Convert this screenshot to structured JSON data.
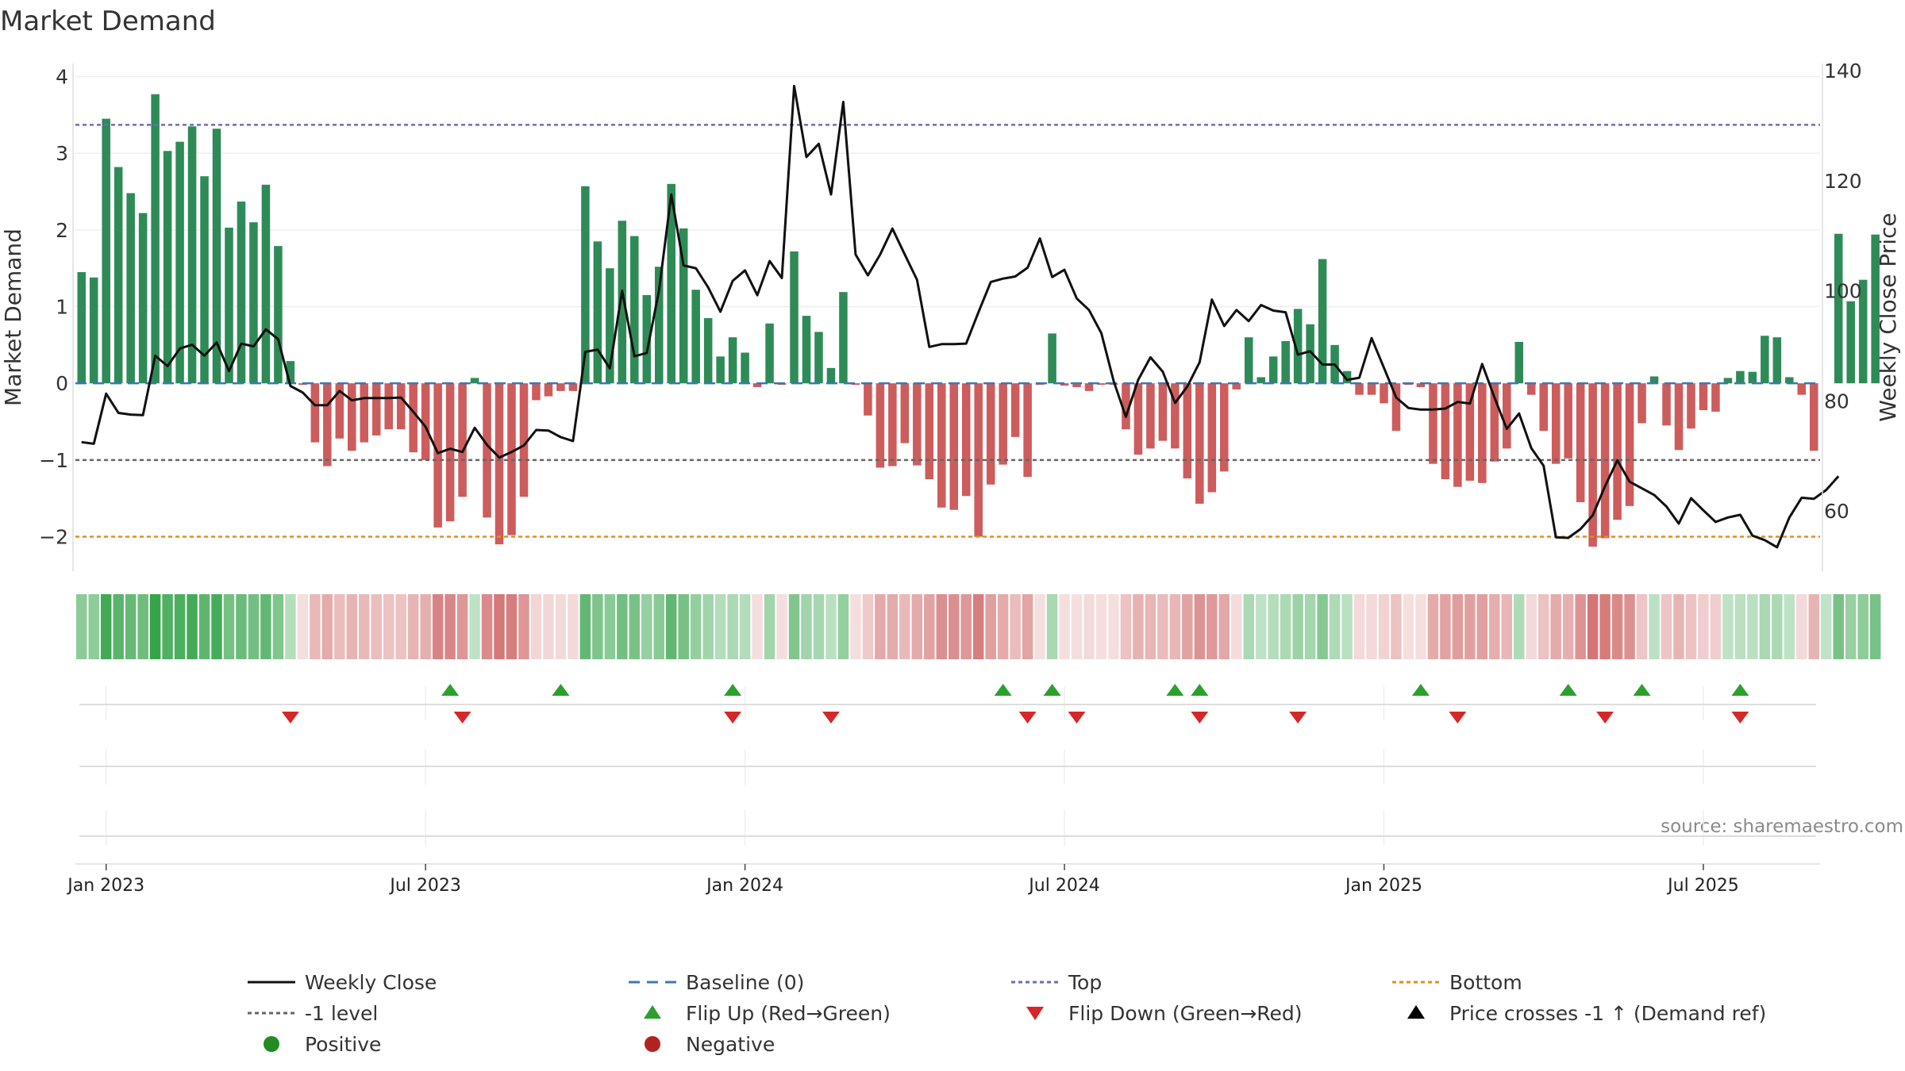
{
  "chart_data": {
    "type": "bar",
    "title": "Market Demand",
    "ylabel": "Market Demand",
    "y2label": "Weekly Close Price",
    "ylim": [
      -2.45,
      4.15
    ],
    "y2lim": [
      50,
      140
    ],
    "yticks": [
      "4",
      "3",
      "2",
      "1",
      "0",
      "−1",
      "−2"
    ],
    "ytick_values": [
      4,
      3,
      2,
      1,
      0,
      -1,
      -2
    ],
    "y2ticks": [
      "140",
      "120",
      "100",
      "80",
      "60"
    ],
    "y2tick_values": [
      140,
      120,
      100,
      80,
      60
    ],
    "x_start": "2022-12-23",
    "weeks": 142,
    "xticks": [
      {
        "label": "Jan 2023",
        "week": 2
      },
      {
        "label": "Jul 2023",
        "week": 28
      },
      {
        "label": "Jan 2024",
        "week": 54
      },
      {
        "label": "Jul 2024",
        "week": 80
      },
      {
        "label": "Jan 2025",
        "week": 106
      },
      {
        "label": "Jul 2025",
        "week": 132
      }
    ],
    "demand": [
      1.45,
      1.38,
      3.45,
      2.82,
      2.48,
      2.22,
      3.77,
      3.03,
      3.15,
      3.35,
      2.7,
      3.32,
      2.03,
      2.37,
      2.1,
      2.59,
      1.79,
      0.29,
      -0.02,
      -0.77,
      -1.08,
      -0.72,
      -0.88,
      -0.77,
      -0.68,
      -0.6,
      -0.6,
      -0.9,
      -1.0,
      -1.88,
      -1.8,
      -1.48,
      0.07,
      -1.75,
      -2.1,
      -1.98,
      -1.48,
      -0.22,
      -0.17,
      -0.1,
      -0.1,
      2.57,
      1.85,
      1.5,
      2.12,
      1.92,
      1.15,
      1.52,
      2.6,
      2.02,
      1.22,
      0.85,
      0.35,
      0.6,
      0.4,
      -0.05,
      0.78,
      -0.02,
      1.72,
      0.88,
      0.67,
      0.2,
      1.19,
      -0.02,
      -0.42,
      -1.1,
      -1.08,
      -0.78,
      -1.07,
      -1.25,
      -1.62,
      -1.65,
      -1.47,
      -2.0,
      -1.32,
      -1.06,
      -0.7,
      -1.22,
      -0.02,
      0.65,
      -0.03,
      -0.05,
      -0.1,
      -0.02,
      -0.02,
      -0.6,
      -0.93,
      -0.85,
      -0.75,
      -0.85,
      -1.24,
      -1.57,
      -1.42,
      -1.15,
      -0.08,
      0.6,
      0.08,
      0.35,
      0.55,
      0.97,
      0.77,
      1.62,
      0.5,
      0.16,
      -0.15,
      -0.15,
      -0.26,
      -0.62,
      -0.02,
      -0.05,
      -1.05,
      -1.25,
      -1.35,
      -1.27,
      -1.3,
      -1.02,
      -0.85,
      0.54,
      -0.15,
      -0.62,
      -1.05,
      -0.98,
      -1.55,
      -2.13,
      -2.02,
      -1.78,
      -1.6,
      -0.52,
      0.09,
      -0.55,
      -0.87,
      -0.59,
      -0.35,
      -0.37,
      0.07,
      0.16,
      0.15,
      0.62,
      0.6,
      0.08,
      -0.15,
      -0.88,
      0.0,
      1.95,
      1.07,
      1.35,
      1.94
    ],
    "close": [
      72.5,
      72.2,
      81.3,
      77.8,
      77.5,
      77.4,
      88.2,
      86.3,
      89.5,
      90.2,
      88.2,
      90.6,
      85.4,
      90.4,
      89.9,
      93.0,
      91.2,
      82.7,
      81.5,
      79.2,
      79.2,
      81.8,
      80.1,
      80.5,
      80.5,
      80.5,
      80.6,
      78.0,
      75.3,
      70.5,
      71.3,
      70.7,
      75.1,
      72.0,
      69.7,
      70.7,
      71.9,
      74.7,
      74.6,
      73.4,
      72.7,
      88.9,
      89.3,
      85.9,
      100.0,
      88.1,
      88.7,
      100.0,
      117.5,
      104.6,
      104.1,
      100.6,
      96.2,
      101.8,
      103.7,
      99.2,
      105.4,
      102.3,
      137.2,
      124.3,
      126.7,
      117.5,
      134.3,
      106.6,
      102.8,
      106.6,
      111.3,
      106.6,
      102.0,
      89.8,
      90.3,
      90.3,
      90.4,
      96.1,
      101.6,
      102.2,
      102.6,
      104.2,
      109.5,
      102.5,
      103.8,
      98.6,
      96.5,
      92.3,
      83.6,
      77.1,
      83.8,
      87.9,
      85.3,
      79.6,
      82.6,
      87.0,
      98.4,
      93.6,
      96.5,
      94.5,
      97.4,
      96.4,
      96.1,
      88.4,
      89.0,
      86.6,
      86.6,
      83.8,
      84.2,
      91.4,
      86.0,
      80.6,
      78.7,
      78.4,
      78.4,
      78.6,
      79.8,
      79.5,
      86.7,
      80.6,
      74.9,
      77.7,
      71.4,
      68.2,
      55.2,
      55.1,
      56.7,
      59.2,
      64.5,
      69.2,
      65.3,
      64.1,
      62.9,
      60.8,
      57.7,
      62.3,
      60.1,
      58.0,
      58.8,
      59.3,
      55.5,
      54.7,
      53.4,
      58.8,
      62.4,
      62.2,
      63.8,
      66.3
    ],
    "thresholds": {
      "top": 3.37,
      "minus_one": -1.0,
      "bottom": -2.0,
      "baseline": 0
    },
    "flip_up_weeks": [
      30,
      39,
      53,
      75,
      79,
      89,
      91,
      109,
      121,
      127,
      135
    ],
    "flip_down_weeks": [
      17,
      31,
      53,
      61,
      77,
      81,
      91,
      99,
      112,
      124,
      135
    ],
    "source": "source: sharemaestro.com",
    "legend": [
      {
        "label": "Weekly Close",
        "kind": "line-solid",
        "color": "#111111"
      },
      {
        "label": "Baseline (0)",
        "kind": "line-dash",
        "color": "#3a78b5"
      },
      {
        "label": "Top",
        "kind": "line-dot",
        "color": "#6d6db5"
      },
      {
        "label": "Bottom",
        "kind": "line-dot",
        "color": "#e0911c"
      },
      {
        "label": "-1 level",
        "kind": "line-dot",
        "color": "#666666"
      },
      {
        "label": "Flip Up (Red→Green)",
        "kind": "tri-up",
        "color": "#2ca02c"
      },
      {
        "label": "Flip Down (Green→Red)",
        "kind": "tri-down",
        "color": "#d62728"
      },
      {
        "label": "Price crosses -1 ↑ (Demand ref)",
        "kind": "tri-up",
        "color": "#000000"
      },
      {
        "label": "Positive",
        "kind": "circle",
        "color": "#228b22"
      },
      {
        "label": "Negative",
        "kind": "circle",
        "color": "#b22222"
      }
    ],
    "colors": {
      "positive_bar": "#2e8b57",
      "negative_bar": "#cd5c5c",
      "close_line": "#111111"
    }
  }
}
